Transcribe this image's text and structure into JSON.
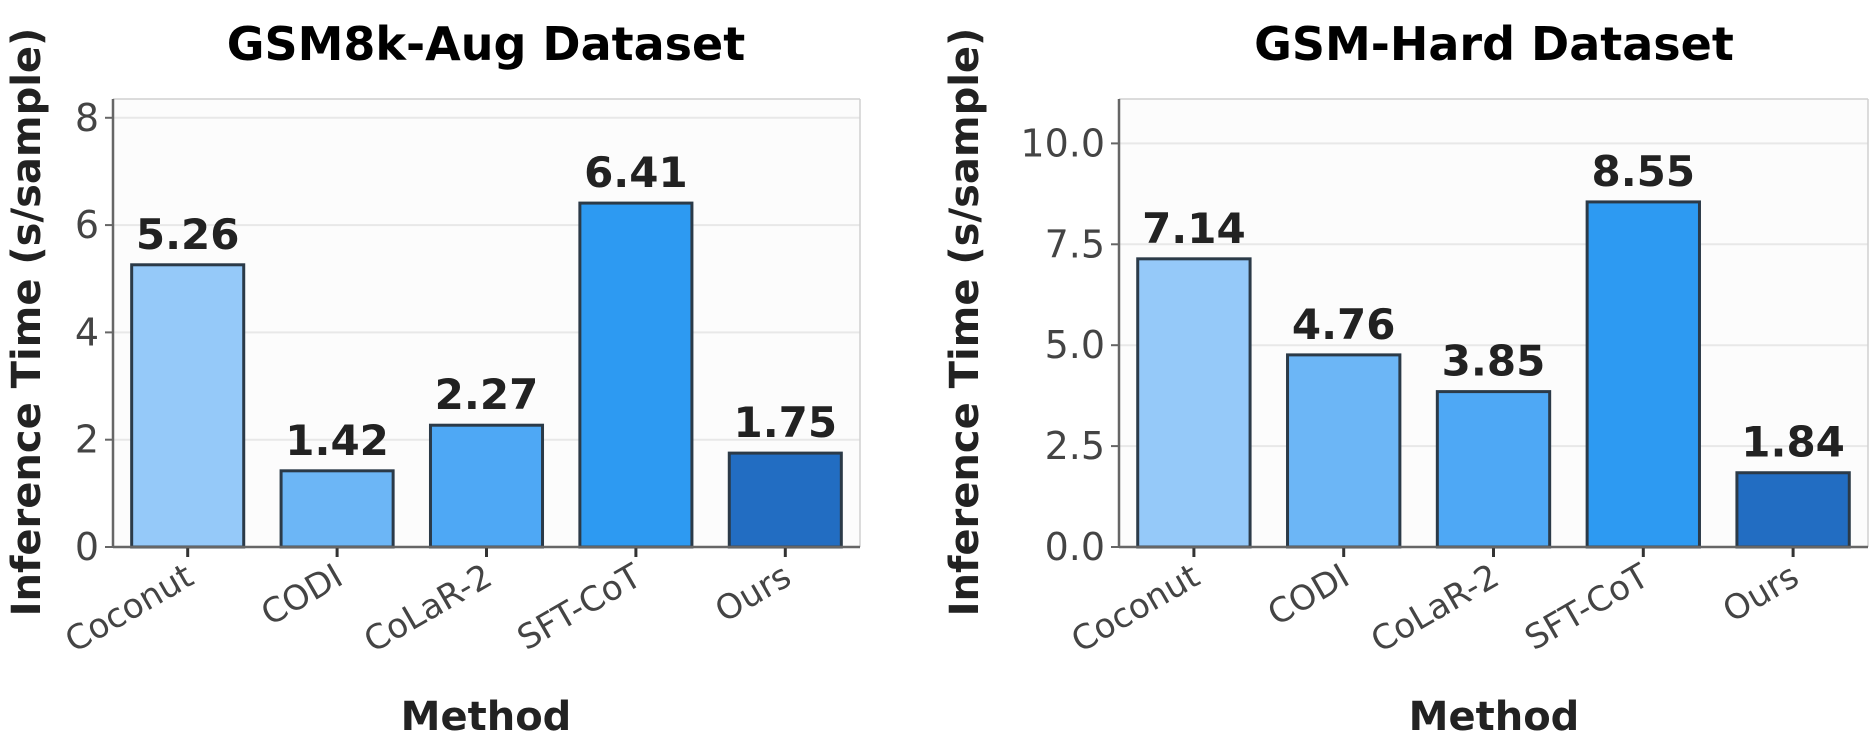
{
  "chart_data": [
    {
      "type": "bar",
      "title": "GSM8k-Aug Dataset",
      "xlabel": "Method",
      "ylabel": "Inference Time (s/sample)",
      "categories": [
        "Coconut",
        "CODI",
        "CoLaR-2",
        "SFT-CoT",
        "Ours"
      ],
      "values": [
        5.26,
        1.42,
        2.27,
        6.41,
        1.75
      ],
      "data_labels": [
        "5.26",
        "1.42",
        "2.27",
        "6.41",
        "1.75"
      ],
      "ylim": [
        0,
        8.35
      ],
      "yticks": [
        0,
        2,
        4,
        6,
        8
      ],
      "ytick_labels": [
        "0",
        "2",
        "4",
        "6",
        "8"
      ],
      "grid": true,
      "colors": [
        "#95c9f9",
        "#6cb6f6",
        "#4ea8f5",
        "#2d9af2",
        "#226dc2"
      ]
    },
    {
      "type": "bar",
      "title": "GSM-Hard Dataset",
      "xlabel": "Method",
      "ylabel": "Inference Time (s/sample)",
      "categories": [
        "Coconut",
        "CODI",
        "CoLaR-2",
        "SFT-CoT",
        "Ours"
      ],
      "values": [
        7.14,
        4.76,
        3.85,
        8.55,
        1.84
      ],
      "data_labels": [
        "7.14",
        "4.76",
        "3.85",
        "8.55",
        "1.84"
      ],
      "ylim": [
        0,
        11.1
      ],
      "yticks": [
        0,
        2.5,
        5,
        7.5,
        10
      ],
      "ytick_labels": [
        "0.0",
        "2.5",
        "5.0",
        "7.5",
        "10.0"
      ],
      "grid": true,
      "colors": [
        "#95c9f9",
        "#6cb6f6",
        "#4ea8f5",
        "#2d9af2",
        "#226dc2"
      ]
    }
  ]
}
